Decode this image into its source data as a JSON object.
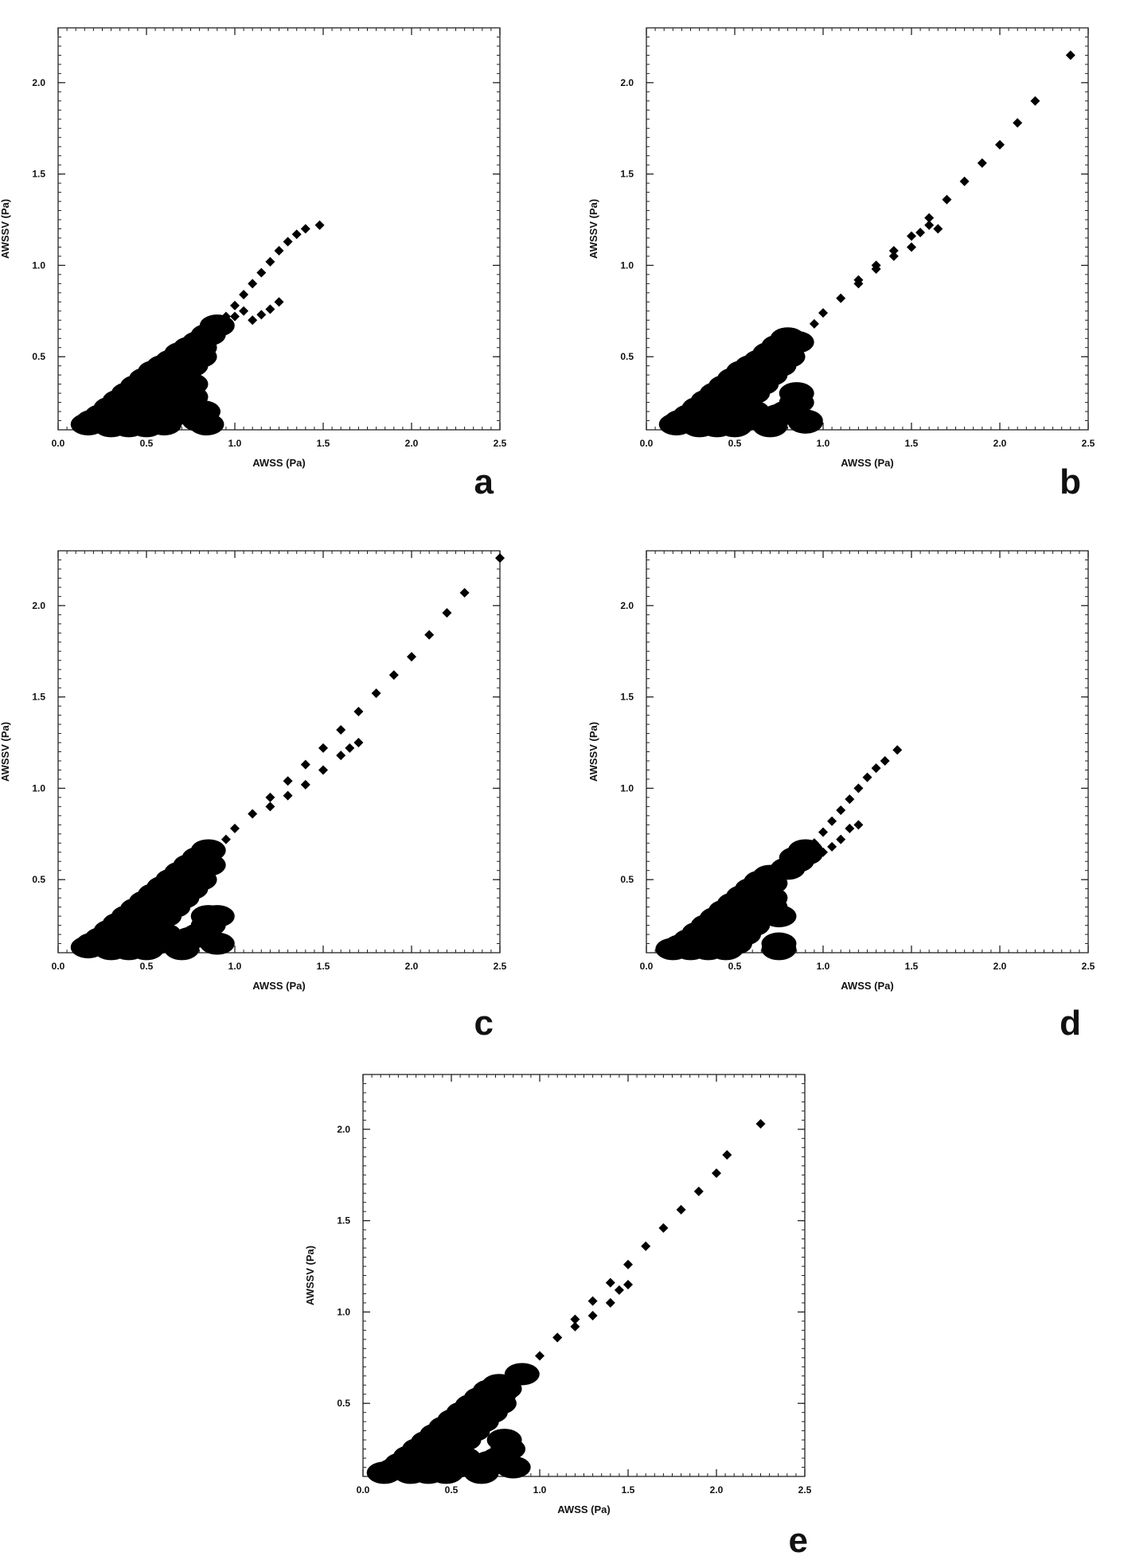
{
  "figure": {
    "background": "#ffffff",
    "marker_color": "#000000"
  },
  "chart_data": [
    {
      "type": "scatter",
      "panel_label": "a",
      "xlabel": "AWSS (Pa)",
      "ylabel": "AWSSV (Pa)",
      "xlim": [
        0.0,
        2.5
      ],
      "ylim": [
        0.1,
        2.3
      ],
      "xticks": [
        "0.0",
        "0.5",
        "1.0",
        "1.5",
        "2.0",
        "2.5"
      ],
      "yticks": [
        "0.5",
        "1.0",
        "1.5",
        "2.0"
      ],
      "grid": false,
      "x": [
        0.17,
        0.2,
        0.25,
        0.3,
        0.35,
        0.4,
        0.45,
        0.5,
        0.55,
        0.6,
        0.65,
        0.7,
        0.75,
        0.8,
        0.3,
        0.35,
        0.4,
        0.45,
        0.5,
        0.55,
        0.6,
        0.65,
        0.7,
        0.75,
        0.8,
        0.4,
        0.45,
        0.5,
        0.55,
        0.6,
        0.65,
        0.7,
        0.75,
        0.8,
        0.5,
        0.55,
        0.6,
        0.65,
        0.7,
        0.75,
        0.6,
        0.65,
        0.7,
        0.75,
        0.85,
        0.9,
        0.95,
        1.0,
        1.05,
        1.1,
        1.15,
        1.2,
        1.25,
        1.3,
        1.35,
        1.4,
        1.48,
        0.95,
        1.0,
        1.05,
        1.1,
        1.15,
        1.2,
        1.25,
        0.8,
        0.82,
        0.84
      ],
      "y": [
        0.13,
        0.15,
        0.18,
        0.22,
        0.26,
        0.3,
        0.34,
        0.38,
        0.42,
        0.45,
        0.48,
        0.52,
        0.55,
        0.58,
        0.12,
        0.15,
        0.18,
        0.22,
        0.25,
        0.3,
        0.35,
        0.4,
        0.45,
        0.5,
        0.55,
        0.12,
        0.16,
        0.2,
        0.25,
        0.3,
        0.35,
        0.4,
        0.45,
        0.5,
        0.12,
        0.15,
        0.2,
        0.25,
        0.3,
        0.35,
        0.13,
        0.18,
        0.22,
        0.28,
        0.62,
        0.67,
        0.72,
        0.78,
        0.84,
        0.9,
        0.96,
        1.02,
        1.08,
        1.13,
        1.17,
        1.2,
        1.22,
        0.68,
        0.72,
        0.75,
        0.7,
        0.73,
        0.76,
        0.8,
        0.15,
        0.2,
        0.13
      ]
    },
    {
      "type": "scatter",
      "panel_label": "b",
      "xlabel": "AWSS (Pa)",
      "ylabel": "AWSSV (Pa)",
      "xlim": [
        0.0,
        2.5
      ],
      "ylim": [
        0.1,
        2.3
      ],
      "xticks": [
        "0.0",
        "0.5",
        "1.0",
        "1.5",
        "2.0",
        "2.5"
      ],
      "yticks": [
        "0.5",
        "1.0",
        "1.5",
        "2.0"
      ],
      "grid": false,
      "x": [
        0.17,
        0.2,
        0.25,
        0.3,
        0.35,
        0.4,
        0.45,
        0.5,
        0.55,
        0.6,
        0.65,
        0.7,
        0.75,
        0.8,
        0.3,
        0.35,
        0.4,
        0.45,
        0.5,
        0.55,
        0.6,
        0.65,
        0.7,
        0.75,
        0.8,
        0.85,
        0.4,
        0.45,
        0.5,
        0.55,
        0.6,
        0.65,
        0.7,
        0.75,
        0.8,
        0.85,
        0.9,
        0.5,
        0.55,
        0.6,
        0.7,
        0.75,
        0.8,
        0.85,
        0.9,
        0.95,
        1.0,
        1.1,
        1.2,
        1.3,
        1.4,
        1.5,
        1.6,
        1.7,
        1.8,
        1.9,
        2.0,
        2.1,
        2.2,
        2.4,
        1.2,
        1.3,
        1.4,
        1.5,
        1.55,
        1.6,
        1.65
      ],
      "y": [
        0.13,
        0.15,
        0.18,
        0.22,
        0.26,
        0.3,
        0.34,
        0.38,
        0.42,
        0.45,
        0.48,
        0.52,
        0.56,
        0.6,
        0.12,
        0.15,
        0.18,
        0.22,
        0.25,
        0.3,
        0.35,
        0.4,
        0.45,
        0.5,
        0.55,
        0.58,
        0.12,
        0.16,
        0.2,
        0.25,
        0.3,
        0.35,
        0.4,
        0.45,
        0.5,
        0.3,
        0.15,
        0.12,
        0.15,
        0.2,
        0.12,
        0.18,
        0.2,
        0.25,
        0.14,
        0.68,
        0.74,
        0.82,
        0.9,
        1.0,
        1.08,
        1.16,
        1.26,
        1.36,
        1.46,
        1.56,
        1.66,
        1.78,
        1.9,
        2.15,
        0.92,
        0.98,
        1.05,
        1.1,
        1.18,
        1.22,
        1.2
      ]
    },
    {
      "type": "scatter",
      "panel_label": "c",
      "xlabel": "AWSS (Pa)",
      "ylabel": "AWSSV (Pa)",
      "xlim": [
        0.0,
        2.5
      ],
      "ylim": [
        0.1,
        2.3
      ],
      "xticks": [
        "0.0",
        "0.5",
        "1.0",
        "1.5",
        "2.0",
        "2.5"
      ],
      "yticks": [
        "0.5",
        "1.0",
        "1.5",
        "2.0"
      ],
      "grid": false,
      "x": [
        0.17,
        0.2,
        0.25,
        0.3,
        0.35,
        0.4,
        0.45,
        0.5,
        0.55,
        0.6,
        0.65,
        0.7,
        0.75,
        0.8,
        0.85,
        0.3,
        0.35,
        0.4,
        0.45,
        0.5,
        0.55,
        0.6,
        0.65,
        0.7,
        0.75,
        0.8,
        0.85,
        0.9,
        0.4,
        0.45,
        0.5,
        0.55,
        0.6,
        0.65,
        0.7,
        0.75,
        0.8,
        0.85,
        0.9,
        0.5,
        0.55,
        0.6,
        0.7,
        0.75,
        0.8,
        0.85,
        0.95,
        1.0,
        1.1,
        1.2,
        1.3,
        1.4,
        1.5,
        1.6,
        1.7,
        1.8,
        1.9,
        2.0,
        2.1,
        2.2,
        2.3,
        2.5,
        1.2,
        1.3,
        1.4,
        1.5,
        1.6,
        1.65,
        1.7
      ],
      "y": [
        0.13,
        0.15,
        0.18,
        0.22,
        0.26,
        0.3,
        0.34,
        0.38,
        0.42,
        0.46,
        0.5,
        0.54,
        0.58,
        0.62,
        0.66,
        0.12,
        0.15,
        0.18,
        0.22,
        0.25,
        0.3,
        0.35,
        0.4,
        0.45,
        0.5,
        0.55,
        0.58,
        0.3,
        0.12,
        0.16,
        0.2,
        0.25,
        0.3,
        0.35,
        0.4,
        0.45,
        0.5,
        0.3,
        0.15,
        0.12,
        0.15,
        0.2,
        0.12,
        0.18,
        0.2,
        0.25,
        0.72,
        0.78,
        0.86,
        0.95,
        1.04,
        1.13,
        1.22,
        1.32,
        1.42,
        1.52,
        1.62,
        1.72,
        1.84,
        1.96,
        2.07,
        2.26,
        0.9,
        0.96,
        1.02,
        1.1,
        1.18,
        1.22,
        1.25
      ]
    },
    {
      "type": "scatter",
      "panel_label": "d",
      "xlabel": "AWSS (Pa)",
      "ylabel": "AWSSV (Pa)",
      "xlim": [
        0.0,
        2.5
      ],
      "ylim": [
        0.1,
        2.3
      ],
      "xticks": [
        "0.0",
        "0.5",
        "1.0",
        "1.5",
        "2.0",
        "2.5"
      ],
      "yticks": [
        "0.5",
        "1.0",
        "1.5",
        "2.0"
      ],
      "grid": false,
      "x": [
        0.15,
        0.2,
        0.25,
        0.3,
        0.35,
        0.4,
        0.45,
        0.5,
        0.55,
        0.6,
        0.65,
        0.7,
        0.25,
        0.3,
        0.35,
        0.4,
        0.45,
        0.5,
        0.55,
        0.6,
        0.65,
        0.7,
        0.75,
        0.35,
        0.4,
        0.45,
        0.5,
        0.55,
        0.6,
        0.65,
        0.7,
        0.75,
        0.45,
        0.5,
        0.55,
        0.6,
        0.65,
        0.7,
        0.75,
        0.8,
        0.85,
        0.9,
        0.95,
        1.0,
        1.05,
        1.1,
        1.15,
        1.2,
        1.25,
        1.3,
        1.35,
        1.42,
        0.85,
        0.9,
        0.95,
        1.0,
        1.05,
        1.1,
        1.15,
        1.2
      ],
      "y": [
        0.12,
        0.14,
        0.17,
        0.21,
        0.25,
        0.29,
        0.33,
        0.37,
        0.41,
        0.45,
        0.49,
        0.52,
        0.12,
        0.15,
        0.19,
        0.23,
        0.27,
        0.31,
        0.35,
        0.4,
        0.44,
        0.48,
        0.3,
        0.12,
        0.16,
        0.2,
        0.24,
        0.28,
        0.32,
        0.36,
        0.4,
        0.15,
        0.12,
        0.15,
        0.2,
        0.25,
        0.3,
        0.35,
        0.12,
        0.56,
        0.6,
        0.64,
        0.7,
        0.76,
        0.82,
        0.88,
        0.94,
        1.0,
        1.06,
        1.11,
        1.15,
        1.21,
        0.62,
        0.66,
        0.7,
        0.65,
        0.68,
        0.72,
        0.78,
        0.8
      ]
    },
    {
      "type": "scatter",
      "panel_label": "e",
      "xlabel": "AWSS (Pa)",
      "ylabel": "AWSSV (Pa)",
      "xlim": [
        0.0,
        2.5
      ],
      "ylim": [
        0.1,
        2.3
      ],
      "xticks": [
        "0.0",
        "0.5",
        "1.0",
        "1.5",
        "2.0",
        "2.5"
      ],
      "yticks": [
        "0.5",
        "1.0",
        "1.5",
        "2.0"
      ],
      "grid": false,
      "x": [
        0.12,
        0.18,
        0.22,
        0.27,
        0.32,
        0.37,
        0.42,
        0.47,
        0.52,
        0.57,
        0.62,
        0.67,
        0.72,
        0.77,
        0.27,
        0.32,
        0.37,
        0.42,
        0.47,
        0.52,
        0.57,
        0.62,
        0.67,
        0.72,
        0.77,
        0.8,
        0.37,
        0.42,
        0.47,
        0.52,
        0.57,
        0.62,
        0.67,
        0.72,
        0.77,
        0.8,
        0.85,
        0.47,
        0.52,
        0.57,
        0.67,
        0.72,
        0.77,
        0.82,
        0.9,
        1.0,
        1.1,
        1.2,
        1.3,
        1.4,
        1.5,
        1.6,
        1.7,
        1.8,
        1.9,
        2.0,
        2.06,
        2.25,
        1.1,
        1.2,
        1.3,
        1.4,
        1.45,
        1.5
      ],
      "y": [
        0.12,
        0.14,
        0.17,
        0.21,
        0.25,
        0.29,
        0.33,
        0.37,
        0.41,
        0.45,
        0.49,
        0.53,
        0.57,
        0.6,
        0.12,
        0.15,
        0.18,
        0.22,
        0.25,
        0.3,
        0.35,
        0.4,
        0.45,
        0.5,
        0.55,
        0.58,
        0.12,
        0.16,
        0.2,
        0.25,
        0.3,
        0.35,
        0.4,
        0.45,
        0.5,
        0.3,
        0.15,
        0.12,
        0.15,
        0.2,
        0.12,
        0.18,
        0.2,
        0.25,
        0.66,
        0.76,
        0.86,
        0.96,
        1.06,
        1.16,
        1.26,
        1.36,
        1.46,
        1.56,
        1.66,
        1.76,
        1.86,
        2.03,
        0.86,
        0.92,
        0.98,
        1.05,
        1.12,
        1.15
      ]
    }
  ]
}
